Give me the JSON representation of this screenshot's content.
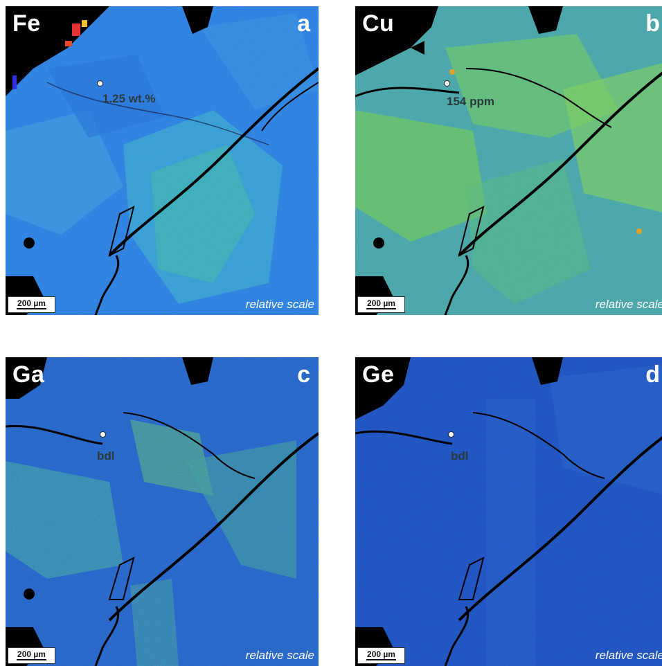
{
  "panels": [
    {
      "element": "Fe",
      "letter": "a",
      "point_value": "1.25 wt.%",
      "scale_bar": "200 µm",
      "scale_note": "relative scale"
    },
    {
      "element": "Cu",
      "letter": "b",
      "point_value": "154 ppm",
      "scale_bar": "200 µm",
      "scale_note": "relative scale"
    },
    {
      "element": "Ga",
      "letter": "c",
      "point_value": "bdl",
      "scale_bar": "200 µm",
      "scale_note": "relative scale"
    },
    {
      "element": "Ge",
      "letter": "d",
      "point_value": "bdl",
      "scale_bar": "200 µm",
      "scale_note": "relative scale"
    }
  ],
  "colors": {
    "fe_base": "#2e7fe6",
    "cu_base": "#3f9ac4",
    "ga_base": "#2563cf",
    "ge_base": "#1f50c8",
    "highlight_green": "#5fd05a",
    "crack": "#000000"
  }
}
